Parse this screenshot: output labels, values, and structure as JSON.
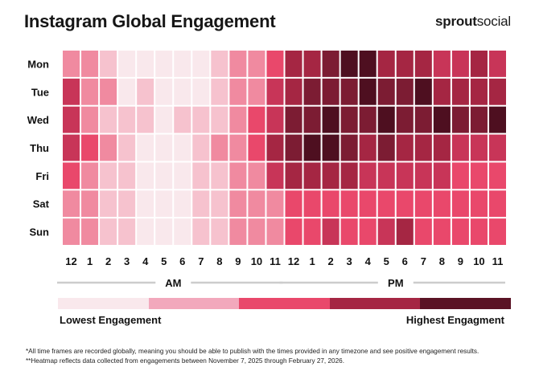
{
  "header": {
    "title": "Instagram Global Engagement",
    "brand_bold": "sprout",
    "brand_light": "social"
  },
  "chart_data": {
    "type": "heatmap",
    "title": "Instagram Global Engagement",
    "rows": [
      "Mon",
      "Tue",
      "Wed",
      "Thu",
      "Fri",
      "Sat",
      "Sun"
    ],
    "columns": [
      "12",
      "1",
      "2",
      "3",
      "4",
      "5",
      "6",
      "7",
      "8",
      "9",
      "10",
      "11",
      "12",
      "1",
      "2",
      "3",
      "4",
      "5",
      "6",
      "7",
      "8",
      "9",
      "10",
      "11"
    ],
    "period_labels": [
      "AM",
      "PM"
    ],
    "scale_levels": 8,
    "values": [
      [
        3,
        3,
        2,
        1,
        1,
        1,
        1,
        1,
        2,
        3,
        3,
        4,
        6,
        6,
        7,
        8,
        8,
        6,
        6,
        6,
        5,
        5,
        6,
        5
      ],
      [
        5,
        3,
        3,
        1,
        2,
        1,
        1,
        1,
        2,
        3,
        3,
        5,
        6,
        7,
        7,
        7,
        8,
        7,
        7,
        8,
        6,
        6,
        6,
        6
      ],
      [
        5,
        3,
        2,
        2,
        2,
        1,
        2,
        2,
        2,
        3,
        4,
        5,
        7,
        7,
        8,
        7,
        7,
        8,
        7,
        7,
        8,
        7,
        7,
        8
      ],
      [
        5,
        4,
        3,
        2,
        1,
        1,
        1,
        2,
        3,
        3,
        4,
        6,
        7,
        8,
        8,
        7,
        6,
        7,
        6,
        6,
        6,
        5,
        5,
        5
      ],
      [
        4,
        3,
        2,
        2,
        1,
        1,
        1,
        2,
        2,
        3,
        3,
        5,
        6,
        6,
        6,
        6,
        5,
        5,
        5,
        5,
        5,
        4,
        4,
        4
      ],
      [
        3,
        3,
        2,
        2,
        1,
        1,
        1,
        2,
        2,
        3,
        3,
        3,
        4,
        4,
        4,
        4,
        4,
        4,
        4,
        4,
        4,
        4,
        4,
        4
      ],
      [
        3,
        3,
        2,
        2,
        1,
        1,
        1,
        2,
        2,
        3,
        3,
        3,
        4,
        4,
        5,
        4,
        4,
        5,
        6,
        4,
        4,
        4,
        4,
        4
      ]
    ],
    "color_scale": [
      "#f9e8ec",
      "#f6c2ce",
      "#f08aa0",
      "#e9486b",
      "#c83558",
      "#a52643",
      "#7c1c33",
      "#4e0f20"
    ],
    "legend_colors": [
      "#f9e8ec",
      "#f2a8bc",
      "#e9486b",
      "#a52643",
      "#5a1325"
    ],
    "legend_low": "Lowest Engagement",
    "legend_high": "Highest Engagment"
  },
  "footnotes": [
    "*All time frames are recorded globally, meaning you should be able to publish with the times provided in any timezone and see positive engagement results.",
    "**Heatmap reflects data collected from engagements between November 7, 2025 through February 27, 2026."
  ]
}
